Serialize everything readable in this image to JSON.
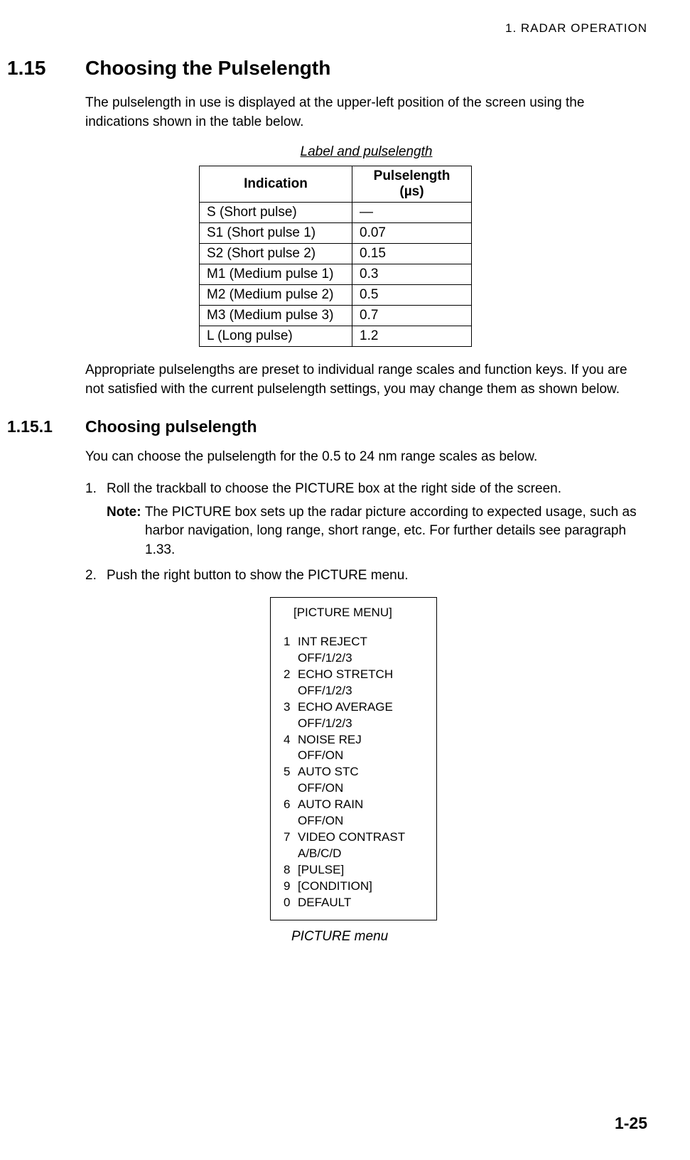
{
  "header": "1. RADAR OPERATION",
  "section": {
    "number": "1.15",
    "title": "Choosing the Pulselength",
    "intro": "The pulselength in use is displayed at the upper-left position of the screen using the indications shown in the table below."
  },
  "table": {
    "caption": "Label and pulselength",
    "columns": [
      "Indication",
      "Pulselength (µs)"
    ],
    "rows": [
      [
        "S (Short pulse)",
        "—"
      ],
      [
        "S1 (Short pulse 1)",
        "0.07"
      ],
      [
        "S2 (Short pulse 2)",
        "0.15"
      ],
      [
        "M1 (Medium pulse 1)",
        "0.3"
      ],
      [
        "M2 (Medium pulse 2)",
        "0.5"
      ],
      [
        "M3 (Medium pulse 3)",
        "0.7"
      ],
      [
        "L (Long pulse)",
        "1.2"
      ]
    ]
  },
  "paragraph_after_table": "Appropriate pulselengths are preset to individual range scales and function keys. If you are not satisfied with the current pulselength settings, you may change them as shown below.",
  "subsection": {
    "number": "1.15.1",
    "title": "Choosing pulselength",
    "intro": "You can choose the pulselength for the 0.5 to 24 nm range scales as below."
  },
  "steps": {
    "step1": {
      "num": "1.",
      "text": "Roll the trackball to choose the PICTURE box at the right side of the screen."
    },
    "note": {
      "label": "Note: ",
      "text": "The PICTURE box sets up the radar picture according to expected usage, such as harbor navigation, long range, short range, etc. For further details see paragraph 1.33."
    },
    "step2": {
      "num": "2.",
      "text": "Push the right button to show the PICTURE menu."
    }
  },
  "menu": {
    "title": "[PICTURE MENU]",
    "items": [
      {
        "num": "1",
        "label": "INT REJECT",
        "sub": "OFF/1/2/3"
      },
      {
        "num": "2",
        "label": "ECHO STRETCH",
        "sub": "OFF/1/2/3"
      },
      {
        "num": "3",
        "label": "ECHO AVERAGE",
        "sub": "OFF/1/2/3"
      },
      {
        "num": "4",
        "label": "NOISE REJ",
        "sub": "OFF/ON"
      },
      {
        "num": "5",
        "label": "AUTO STC",
        "sub": "OFF/ON"
      },
      {
        "num": "6",
        "label": "AUTO RAIN",
        "sub": "OFF/ON"
      },
      {
        "num": "7",
        "label": "VIDEO CONTRAST",
        "sub": "A/B/C/D"
      },
      {
        "num": "8",
        "label": "[PULSE]",
        "sub": ""
      },
      {
        "num": "9",
        "label": "[CONDITION]",
        "sub": ""
      },
      {
        "num": "0",
        "label": "DEFAULT",
        "sub": ""
      }
    ],
    "caption": "PICTURE menu"
  },
  "page_number": "1-25"
}
